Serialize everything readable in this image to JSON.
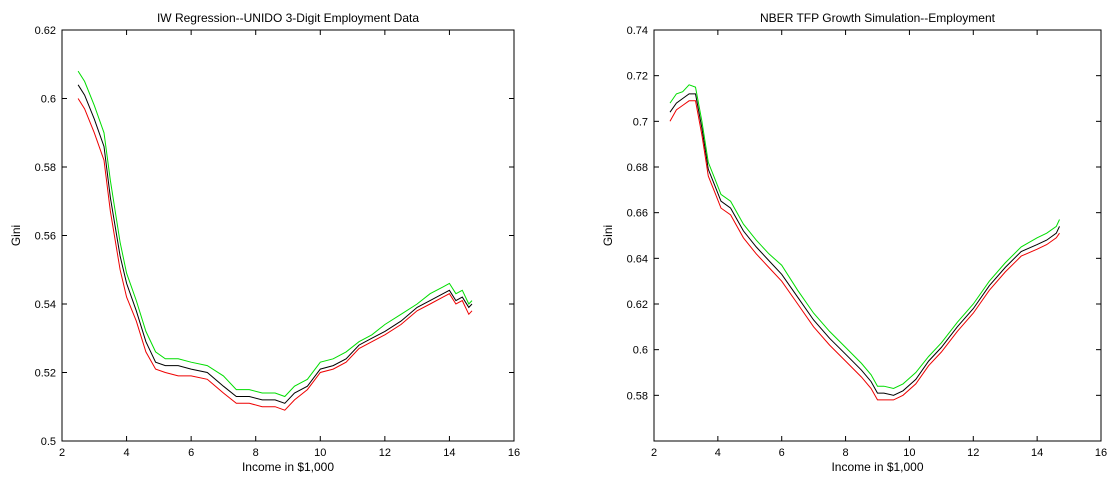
{
  "chart_data": [
    {
      "type": "line",
      "title": "IW Regression--UNIDO 3-Digit Employment Data",
      "xlabel": "Income in $1,000",
      "ylabel": "Gini",
      "xlim": [
        2,
        16
      ],
      "ylim": [
        0.5,
        0.62
      ],
      "xticks": [
        "2",
        "4",
        "6",
        "8",
        "10",
        "12",
        "14",
        "16"
      ],
      "yticks": [
        "0.5",
        "0.52",
        "0.54",
        "0.56",
        "0.58",
        "0.6",
        "0.62"
      ],
      "grid": false,
      "x": [
        2.5,
        2.7,
        3.0,
        3.3,
        3.5,
        3.8,
        4.0,
        4.3,
        4.6,
        4.9,
        5.2,
        5.6,
        6.0,
        6.5,
        7.0,
        7.4,
        7.8,
        8.2,
        8.6,
        8.9,
        9.2,
        9.6,
        10.0,
        10.4,
        10.8,
        11.2,
        11.6,
        12.0,
        12.5,
        13.0,
        13.4,
        13.8,
        14.0,
        14.2,
        14.4,
        14.6,
        14.7
      ],
      "series": [
        {
          "color": "#00dd00",
          "values": [
            0.608,
            0.605,
            0.598,
            0.59,
            0.576,
            0.558,
            0.549,
            0.541,
            0.532,
            0.526,
            0.524,
            0.524,
            0.523,
            0.522,
            0.519,
            0.515,
            0.515,
            0.514,
            0.514,
            0.513,
            0.516,
            0.518,
            0.523,
            0.524,
            0.526,
            0.529,
            0.531,
            0.534,
            0.537,
            0.54,
            0.543,
            0.545,
            0.546,
            0.543,
            0.544,
            0.54,
            0.541
          ]
        },
        {
          "color": "#000000",
          "values": [
            0.604,
            0.601,
            0.594,
            0.586,
            0.571,
            0.554,
            0.546,
            0.538,
            0.529,
            0.523,
            0.522,
            0.522,
            0.521,
            0.52,
            0.516,
            0.513,
            0.513,
            0.512,
            0.512,
            0.511,
            0.514,
            0.516,
            0.521,
            0.522,
            0.524,
            0.528,
            0.53,
            0.532,
            0.535,
            0.539,
            0.541,
            0.543,
            0.544,
            0.541,
            0.542,
            0.539,
            0.54
          ]
        },
        {
          "color": "#ee0000",
          "values": [
            0.6,
            0.597,
            0.59,
            0.582,
            0.567,
            0.55,
            0.542,
            0.535,
            0.526,
            0.521,
            0.52,
            0.519,
            0.519,
            0.518,
            0.514,
            0.511,
            0.511,
            0.51,
            0.51,
            0.509,
            0.512,
            0.515,
            0.52,
            0.521,
            0.523,
            0.527,
            0.529,
            0.531,
            0.534,
            0.538,
            0.54,
            0.542,
            0.543,
            0.54,
            0.541,
            0.537,
            0.538
          ]
        }
      ]
    },
    {
      "type": "line",
      "title": "NBER TFP Growth Simulation--Employment",
      "xlabel": "Income in $1,000",
      "ylabel": "Gini",
      "xlim": [
        2,
        16
      ],
      "ylim": [
        0.56,
        0.74
      ],
      "xticks": [
        "2",
        "4",
        "6",
        "8",
        "10",
        "12",
        "14",
        "16"
      ],
      "yticks": [
        "0.58",
        "0.6",
        "0.62",
        "0.64",
        "0.66",
        "0.68",
        "0.7",
        "0.72",
        "0.74"
      ],
      "grid": false,
      "x": [
        2.5,
        2.7,
        2.9,
        3.1,
        3.3,
        3.5,
        3.7,
        3.9,
        4.1,
        4.4,
        4.8,
        5.2,
        5.6,
        6.0,
        6.5,
        7.0,
        7.5,
        8.0,
        8.5,
        8.8,
        9.0,
        9.2,
        9.5,
        9.8,
        10.2,
        10.6,
        11.0,
        11.5,
        12.0,
        12.5,
        13.0,
        13.5,
        14.0,
        14.3,
        14.6,
        14.7
      ],
      "series": [
        {
          "color": "#00dd00",
          "values": [
            0.708,
            0.712,
            0.713,
            0.716,
            0.715,
            0.7,
            0.682,
            0.675,
            0.668,
            0.665,
            0.655,
            0.648,
            0.642,
            0.637,
            0.626,
            0.616,
            0.608,
            0.601,
            0.594,
            0.589,
            0.584,
            0.584,
            0.583,
            0.585,
            0.59,
            0.597,
            0.603,
            0.612,
            0.62,
            0.63,
            0.638,
            0.645,
            0.649,
            0.651,
            0.654,
            0.657
          ]
        },
        {
          "color": "#000000",
          "values": [
            0.704,
            0.708,
            0.71,
            0.712,
            0.712,
            0.697,
            0.679,
            0.672,
            0.665,
            0.662,
            0.652,
            0.645,
            0.639,
            0.633,
            0.623,
            0.613,
            0.605,
            0.598,
            0.591,
            0.586,
            0.581,
            0.581,
            0.58,
            0.582,
            0.587,
            0.595,
            0.601,
            0.61,
            0.618,
            0.628,
            0.636,
            0.643,
            0.646,
            0.648,
            0.651,
            0.654
          ]
        },
        {
          "color": "#ee0000",
          "values": [
            0.7,
            0.705,
            0.707,
            0.709,
            0.709,
            0.694,
            0.676,
            0.669,
            0.662,
            0.659,
            0.649,
            0.642,
            0.636,
            0.63,
            0.62,
            0.61,
            0.602,
            0.595,
            0.588,
            0.583,
            0.578,
            0.578,
            0.578,
            0.58,
            0.585,
            0.593,
            0.599,
            0.608,
            0.616,
            0.626,
            0.634,
            0.641,
            0.644,
            0.646,
            0.649,
            0.651
          ]
        }
      ]
    }
  ]
}
